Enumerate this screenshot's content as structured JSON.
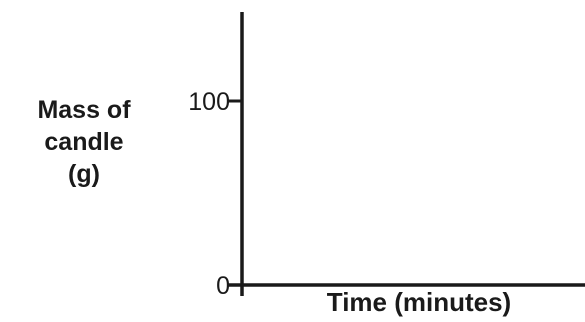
{
  "chart_data": {
    "type": "line",
    "title": "",
    "xlabel": "Time (minutes)",
    "ylabel_lines": [
      "Mass of",
      "candle",
      "(g)"
    ],
    "yticks": [
      {
        "value": 0,
        "label": "0"
      },
      {
        "value": 100,
        "label": "100"
      }
    ],
    "ylim": [
      0,
      150
    ],
    "series": [],
    "grid": false,
    "colors": {
      "axis": "#1a1a1a",
      "text": "#1a1a1a",
      "background": "#ffffff"
    }
  }
}
